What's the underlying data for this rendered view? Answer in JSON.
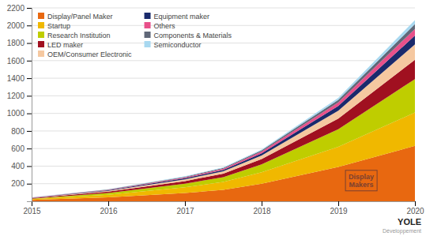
{
  "chart_data": {
    "type": "area",
    "stacked": true,
    "x": [
      2015,
      2016,
      2017,
      2017.5,
      2018,
      2019,
      2020
    ],
    "series": [
      {
        "name": "Display/Panel Maker",
        "color": "#E86810",
        "values": [
          15,
          45,
          95,
          130,
          200,
          390,
          630
        ]
      },
      {
        "name": "Startup",
        "color": "#F0B800",
        "values": [
          10,
          30,
          65,
          90,
          130,
          230,
          380
        ]
      },
      {
        "name": "Research Institution",
        "color": "#BFCD00",
        "values": [
          5,
          20,
          40,
          55,
          90,
          200,
          380
        ]
      },
      {
        "name": "LED maker",
        "color": "#A01020",
        "values": [
          5,
          15,
          30,
          40,
          60,
          120,
          220
        ]
      },
      {
        "name": "OEM/Consumer Electronic",
        "color": "#F5C8A0",
        "values": [
          3,
          10,
          20,
          27,
          40,
          90,
          175
        ]
      },
      {
        "name": "Equipment maker",
        "color": "#1A2A6C",
        "values": [
          2,
          6,
          12,
          16,
          25,
          55,
          100
        ]
      },
      {
        "name": "Others",
        "color": "#E8508A",
        "values": [
          2,
          5,
          10,
          13,
          20,
          40,
          75
        ]
      },
      {
        "name": "Components & Materials",
        "color": "#606878",
        "values": [
          1,
          4,
          7,
          9,
          14,
          30,
          55
        ]
      },
      {
        "name": "Semiconductor",
        "color": "#A8D8F0",
        "values": [
          1,
          3,
          5,
          7,
          10,
          22,
          45
        ]
      }
    ],
    "xlim": [
      2015,
      2020
    ],
    "xticks": [
      2015,
      2016,
      2017,
      2018,
      2019,
      2020
    ],
    "ylim": [
      0,
      2200
    ],
    "yticks": [
      200,
      400,
      600,
      800,
      1000,
      1200,
      1400,
      1600,
      1800,
      2000,
      2200
    ],
    "grid": true,
    "legend": "upper-left",
    "annotations": [
      {
        "text": "Display\nMakers",
        "x": 2019.3,
        "y": 240,
        "color": "#7A4030"
      },
      {
        "text": "YOLE"
      },
      {
        "text": "Développement"
      }
    ]
  }
}
